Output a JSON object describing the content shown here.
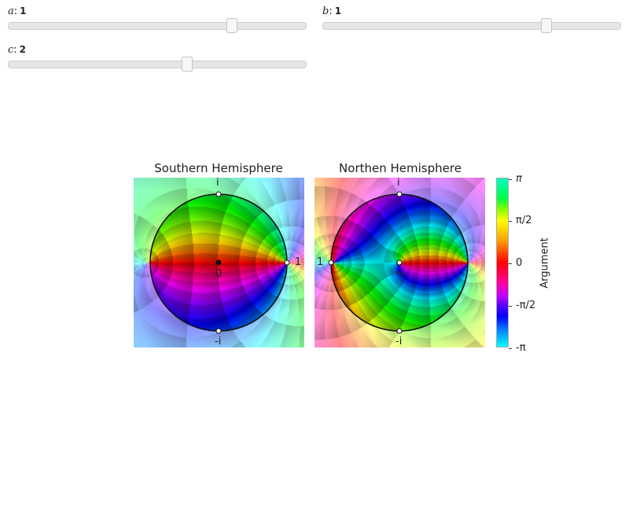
{
  "sliders": [
    {
      "var": "a",
      "value": "1",
      "fraction": 0.75
    },
    {
      "var": "b",
      "value": "1",
      "fraction": 0.75
    },
    {
      "var": "c",
      "value": "2",
      "fraction": 0.6
    }
  ],
  "plots": {
    "south": {
      "title": "Southern Hemisphere",
      "top": "i",
      "bottom": "-i",
      "right": "1",
      "center": "0"
    },
    "north": {
      "title": "Northen Hemisphere",
      "top": "i",
      "bottom": "-i",
      "left": "1",
      "center": "∞"
    }
  },
  "colorbar": {
    "title": "Argument",
    "ticks": [
      "π",
      "π/2",
      "0",
      "-π/2",
      "-π"
    ]
  }
}
